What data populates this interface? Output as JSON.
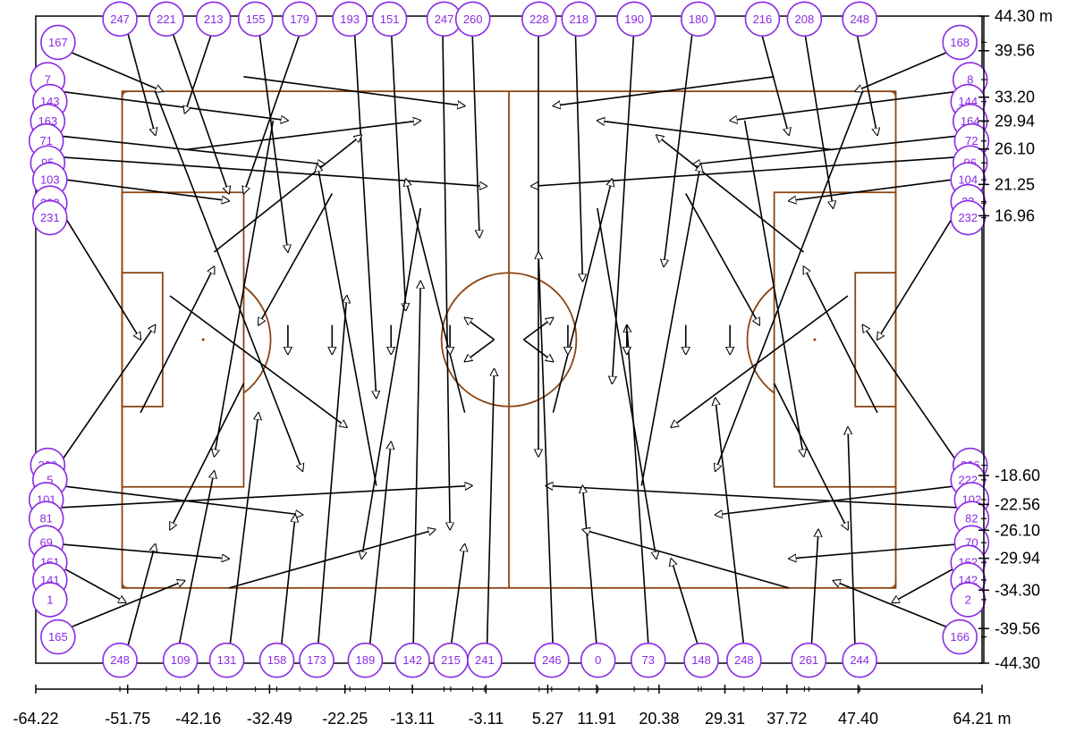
{
  "colors": {
    "pitch_lines": "#8b4513",
    "node_stroke": "#8b2be2",
    "node_text": "#8b2be2",
    "arrows": "#000000",
    "axes": "#000000"
  },
  "pitch": {
    "x_range": [
      -52.5,
      52.5
    ],
    "y_range": [
      -34.0,
      34.0
    ]
  },
  "world": {
    "x_range": [
      -64.22,
      64.21
    ],
    "y_range": [
      -44.3,
      44.3
    ],
    "unit": "m"
  },
  "x_axis": {
    "tick_labels": [
      {
        "value": -64.22,
        "label": "-64.22"
      },
      {
        "value": -51.75,
        "label": "-51.75"
      },
      {
        "value": -42.16,
        "label": "-42.16"
      },
      {
        "value": -32.49,
        "label": "-32.49"
      },
      {
        "value": -22.25,
        "label": "-22.25"
      },
      {
        "value": -13.11,
        "label": "-13.11"
      },
      {
        "value": -3.11,
        "label": "-3.11"
      },
      {
        "value": 5.27,
        "label": "5.27"
      },
      {
        "value": 11.91,
        "label": "11.91"
      },
      {
        "value": 20.38,
        "label": "20.38"
      },
      {
        "value": 29.31,
        "label": "29.31"
      },
      {
        "value": 37.72,
        "label": "37.72"
      },
      {
        "value": 47.4,
        "label": "47.40"
      },
      {
        "value": 64.21,
        "label": "64.21 m"
      }
    ]
  },
  "y_axis": {
    "tick_labels": [
      {
        "value": 44.3,
        "label": "44.30 m"
      },
      {
        "value": 39.56,
        "label": "39.56"
      },
      {
        "value": 33.2,
        "label": "33.20"
      },
      {
        "value": 29.94,
        "label": "29.94"
      },
      {
        "value": 26.1,
        "label": "26.10"
      },
      {
        "value": 21.25,
        "label": "21.25"
      },
      {
        "value": 16.96,
        "label": "16.96"
      },
      {
        "value": -18.6,
        "label": "-18.60"
      },
      {
        "value": -22.56,
        "label": "-22.56"
      },
      {
        "value": -26.1,
        "label": "-26.10"
      },
      {
        "value": -29.94,
        "label": "-29.94"
      },
      {
        "value": -34.3,
        "label": "-34.30"
      },
      {
        "value": -39.56,
        "label": "-39.56"
      },
      {
        "value": -44.3,
        "label": "-44.30"
      }
    ]
  },
  "nodes": [
    {
      "id": "167",
      "x": -61.2,
      "y": 40.7
    },
    {
      "id": "168",
      "x": 61.2,
      "y": 40.7
    },
    {
      "id": "165",
      "x": -61.2,
      "y": -40.7
    },
    {
      "id": "166",
      "x": 61.2,
      "y": -40.7
    },
    {
      "id": "7",
      "x": -62.6,
      "y": 35.6
    },
    {
      "id": "143",
      "x": -62.3,
      "y": 32.6
    },
    {
      "id": "163",
      "x": -62.6,
      "y": 29.9
    },
    {
      "id": "71",
      "x": -62.8,
      "y": 27.2
    },
    {
      "id": "95",
      "x": -62.6,
      "y": 24.2
    },
    {
      "id": "103",
      "x": -62.3,
      "y": 21.9
    },
    {
      "id": "223",
      "x": -62.3,
      "y": 18.7
    },
    {
      "id": "231",
      "x": -62.3,
      "y": 16.7
    },
    {
      "id": "229",
      "x": -62.6,
      "y": -17.2
    },
    {
      "id": "5",
      "x": -62.3,
      "y": -19.2
    },
    {
      "id": "101",
      "x": -62.8,
      "y": -21.9
    },
    {
      "id": "81",
      "x": -62.8,
      "y": -24.5
    },
    {
      "id": "69",
      "x": -62.8,
      "y": -27.8
    },
    {
      "id": "161",
      "x": -62.3,
      "y": -30.5
    },
    {
      "id": "141",
      "x": -62.3,
      "y": -32.9
    },
    {
      "id": "1",
      "x": -62.3,
      "y": -35.6
    },
    {
      "id": "8",
      "x": 62.6,
      "y": 35.6
    },
    {
      "id": "144",
      "x": 62.3,
      "y": 32.6
    },
    {
      "id": "164",
      "x": 62.6,
      "y": 29.9
    },
    {
      "id": "72",
      "x": 62.8,
      "y": 27.2
    },
    {
      "id": "96",
      "x": 62.6,
      "y": 24.2
    },
    {
      "id": "104",
      "x": 62.3,
      "y": 21.9
    },
    {
      "id": "22",
      "x": 62.3,
      "y": 18.9
    },
    {
      "id": "232",
      "x": 62.3,
      "y": 16.7
    },
    {
      "id": "226",
      "x": 62.6,
      "y": -17.2
    },
    {
      "id": "222",
      "x": 62.3,
      "y": -19.2
    },
    {
      "id": "102",
      "x": 62.8,
      "y": -21.9
    },
    {
      "id": "82",
      "x": 62.8,
      "y": -24.5
    },
    {
      "id": "70",
      "x": 62.8,
      "y": -27.8
    },
    {
      "id": "162",
      "x": 62.3,
      "y": -30.5
    },
    {
      "id": "142",
      "x": 62.3,
      "y": -32.9
    },
    {
      "id": "2",
      "x": 62.3,
      "y": -35.6
    },
    {
      "id": "247",
      "x": -52.8,
      "y": 43.9
    },
    {
      "id": "221",
      "x": -46.5,
      "y": 43.9
    },
    {
      "id": "213",
      "x": -40.1,
      "y": 43.9
    },
    {
      "id": "155",
      "x": -34.4,
      "y": 43.9
    },
    {
      "id": "179",
      "x": -28.4,
      "y": 43.9
    },
    {
      "id": "193",
      "x": -21.6,
      "y": 43.9
    },
    {
      "id": "151",
      "x": -16.2,
      "y": 43.9
    },
    {
      "id": "247b",
      "label": "247",
      "x": -8.8,
      "y": 43.9
    },
    {
      "id": "260",
      "x": -4.9,
      "y": 43.9
    },
    {
      "id": "228",
      "x": 4.1,
      "y": 43.9
    },
    {
      "id": "218",
      "x": 9.5,
      "y": 43.9
    },
    {
      "id": "190",
      "x": 17.0,
      "y": 43.9
    },
    {
      "id": "180",
      "x": 25.7,
      "y": 43.9
    },
    {
      "id": "216",
      "x": 34.4,
      "y": 43.9
    },
    {
      "id": "208",
      "x": 40.1,
      "y": 43.9
    },
    {
      "id": "248",
      "x": 47.6,
      "y": 43.9
    },
    {
      "id": "248b",
      "label": "248",
      "x": -52.8,
      "y": -43.9
    },
    {
      "id": "109",
      "x": -44.6,
      "y": -43.9
    },
    {
      "id": "131",
      "x": -38.3,
      "y": -43.9
    },
    {
      "id": "158",
      "x": -31.5,
      "y": -43.9
    },
    {
      "id": "173",
      "x": -26.1,
      "y": -43.9
    },
    {
      "id": "189",
      "x": -19.5,
      "y": -43.9
    },
    {
      "id": "142b",
      "label": "142",
      "x": -13.1,
      "y": -43.9
    },
    {
      "id": "215",
      "x": -7.9,
      "y": -43.9
    },
    {
      "id": "241",
      "x": -3.3,
      "y": -43.9
    },
    {
      "id": "246",
      "x": 5.8,
      "y": -43.9
    },
    {
      "id": "0",
      "x": 12.1,
      "y": -43.9
    },
    {
      "id": "73",
      "x": 18.9,
      "y": -43.9
    },
    {
      "id": "148",
      "x": 26.1,
      "y": -43.9
    },
    {
      "id": "248c",
      "label": "248",
      "x": 31.9,
      "y": -43.9
    },
    {
      "id": "261",
      "x": 40.7,
      "y": -43.9
    },
    {
      "id": "244",
      "x": 47.6,
      "y": -43.9
    }
  ],
  "arrows": [
    {
      "from": [
        -61,
        40
      ],
      "to": [
        -47,
        34
      ]
    },
    {
      "from": [
        -61,
        34
      ],
      "to": [
        -30,
        30
      ]
    },
    {
      "from": [
        -62,
        28
      ],
      "to": [
        -25,
        24
      ]
    },
    {
      "from": [
        -61,
        25
      ],
      "to": [
        -3,
        21
      ]
    },
    {
      "from": [
        -61,
        22
      ],
      "to": [
        -38,
        19
      ]
    },
    {
      "from": [
        -61,
        18
      ],
      "to": [
        -50,
        0
      ]
    },
    {
      "from": [
        -61,
        -17
      ],
      "to": [
        -48,
        2
      ]
    },
    {
      "from": [
        -61,
        -20
      ],
      "to": [
        -28,
        -24
      ]
    },
    {
      "from": [
        -61,
        -23
      ],
      "to": [
        -5,
        -20
      ]
    },
    {
      "from": [
        -61,
        -28
      ],
      "to": [
        -38,
        -30
      ]
    },
    {
      "from": [
        -61,
        -31
      ],
      "to": [
        -52,
        -36
      ]
    },
    {
      "from": [
        -61,
        -40
      ],
      "to": [
        -44,
        -33
      ]
    },
    {
      "from": [
        61,
        40
      ],
      "to": [
        47,
        34
      ]
    },
    {
      "from": [
        61,
        34
      ],
      "to": [
        30,
        30
      ]
    },
    {
      "from": [
        62,
        28
      ],
      "to": [
        25,
        24
      ]
    },
    {
      "from": [
        61,
        25
      ],
      "to": [
        3,
        21
      ]
    },
    {
      "from": [
        61,
        22
      ],
      "to": [
        38,
        19
      ]
    },
    {
      "from": [
        61,
        18
      ],
      "to": [
        50,
        0
      ]
    },
    {
      "from": [
        61,
        -17
      ],
      "to": [
        48,
        2
      ]
    },
    {
      "from": [
        61,
        -20
      ],
      "to": [
        28,
        -24
      ]
    },
    {
      "from": [
        61,
        -23
      ],
      "to": [
        5,
        -20
      ]
    },
    {
      "from": [
        61,
        -28
      ],
      "to": [
        38,
        -30
      ]
    },
    {
      "from": [
        61,
        -31
      ],
      "to": [
        52,
        -36
      ]
    },
    {
      "from": [
        61,
        -40
      ],
      "to": [
        44,
        -33
      ]
    },
    {
      "from": [
        -52,
        43
      ],
      "to": [
        -48,
        28
      ]
    },
    {
      "from": [
        -46,
        43
      ],
      "to": [
        -38,
        20
      ]
    },
    {
      "from": [
        -40,
        43
      ],
      "to": [
        -44,
        31
      ]
    },
    {
      "from": [
        -34,
        43
      ],
      "to": [
        -30,
        12
      ]
    },
    {
      "from": [
        -28,
        43
      ],
      "to": [
        -36,
        20
      ]
    },
    {
      "from": [
        -21,
        43
      ],
      "to": [
        -18,
        -8
      ]
    },
    {
      "from": [
        -16,
        43
      ],
      "to": [
        -14,
        4
      ]
    },
    {
      "from": [
        -9,
        43
      ],
      "to": [
        -8,
        -26
      ]
    },
    {
      "from": [
        -5,
        43
      ],
      "to": [
        -4,
        14
      ]
    },
    {
      "from": [
        4,
        43
      ],
      "to": [
        4,
        -16
      ]
    },
    {
      "from": [
        9,
        43
      ],
      "to": [
        10,
        8
      ]
    },
    {
      "from": [
        17,
        43
      ],
      "to": [
        14,
        -6
      ]
    },
    {
      "from": [
        25,
        43
      ],
      "to": [
        21,
        10
      ]
    },
    {
      "from": [
        34,
        43
      ],
      "to": [
        38,
        28
      ]
    },
    {
      "from": [
        40,
        43
      ],
      "to": [
        44,
        18
      ]
    },
    {
      "from": [
        47,
        43
      ],
      "to": [
        50,
        28
      ]
    },
    {
      "from": [
        -52,
        -43
      ],
      "to": [
        -48,
        -28
      ]
    },
    {
      "from": [
        -45,
        -43
      ],
      "to": [
        -40,
        -18
      ]
    },
    {
      "from": [
        -38,
        -43
      ],
      "to": [
        -34,
        -10
      ]
    },
    {
      "from": [
        -31,
        -43
      ],
      "to": [
        -29,
        -24
      ]
    },
    {
      "from": [
        -26,
        -43
      ],
      "to": [
        -22,
        6
      ]
    },
    {
      "from": [
        -19,
        -43
      ],
      "to": [
        -16,
        -14
      ]
    },
    {
      "from": [
        -13,
        -43
      ],
      "to": [
        -12,
        8
      ]
    },
    {
      "from": [
        -8,
        -43
      ],
      "to": [
        -6,
        -28
      ]
    },
    {
      "from": [
        -3,
        -43
      ],
      "to": [
        -2,
        -4
      ]
    },
    {
      "from": [
        6,
        -43
      ],
      "to": [
        4,
        12
      ]
    },
    {
      "from": [
        12,
        -43
      ],
      "to": [
        10,
        -20
      ]
    },
    {
      "from": [
        19,
        -43
      ],
      "to": [
        16,
        2
      ]
    },
    {
      "from": [
        26,
        -43
      ],
      "to": [
        22,
        -30
      ]
    },
    {
      "from": [
        32,
        -43
      ],
      "to": [
        28,
        -8
      ]
    },
    {
      "from": [
        41,
        -43
      ],
      "to": [
        42,
        -26
      ]
    },
    {
      "from": [
        47,
        -43
      ],
      "to": [
        46,
        -12
      ]
    },
    {
      "from": [
        -48,
        34
      ],
      "to": [
        -28,
        -18
      ]
    },
    {
      "from": [
        -44,
        26
      ],
      "to": [
        -12,
        30
      ]
    },
    {
      "from": [
        -40,
        12
      ],
      "to": [
        -20,
        28
      ]
    },
    {
      "from": [
        -36,
        -6
      ],
      "to": [
        -46,
        -26
      ]
    },
    {
      "from": [
        -32,
        30
      ],
      "to": [
        -40,
        -16
      ]
    },
    {
      "from": [
        -24,
        20
      ],
      "to": [
        -34,
        2
      ]
    },
    {
      "from": [
        -18,
        -20
      ],
      "to": [
        -26,
        24
      ]
    },
    {
      "from": [
        -12,
        18
      ],
      "to": [
        -20,
        -30
      ]
    },
    {
      "from": [
        -6,
        -10
      ],
      "to": [
        -14,
        22
      ]
    },
    {
      "from": [
        -2,
        0
      ],
      "to": [
        -6,
        3
      ]
    },
    {
      "from": [
        2,
        0
      ],
      "to": [
        6,
        3
      ]
    },
    {
      "from": [
        -2,
        0
      ],
      "to": [
        -6,
        -3
      ]
    },
    {
      "from": [
        2,
        0
      ],
      "to": [
        6,
        -3
      ]
    },
    {
      "from": [
        48,
        34
      ],
      "to": [
        28,
        -18
      ]
    },
    {
      "from": [
        44,
        26
      ],
      "to": [
        12,
        30
      ]
    },
    {
      "from": [
        40,
        12
      ],
      "to": [
        20,
        28
      ]
    },
    {
      "from": [
        36,
        -6
      ],
      "to": [
        46,
        -26
      ]
    },
    {
      "from": [
        32,
        30
      ],
      "to": [
        40,
        -16
      ]
    },
    {
      "from": [
        24,
        20
      ],
      "to": [
        34,
        2
      ]
    },
    {
      "from": [
        18,
        -20
      ],
      "to": [
        26,
        24
      ]
    },
    {
      "from": [
        12,
        18
      ],
      "to": [
        20,
        -30
      ]
    },
    {
      "from": [
        6,
        -10
      ],
      "to": [
        14,
        22
      ]
    },
    {
      "from": [
        -30,
        2
      ],
      "to": [
        -30,
        -2
      ]
    },
    {
      "from": [
        -24,
        2
      ],
      "to": [
        -24,
        -2
      ]
    },
    {
      "from": [
        -16,
        2
      ],
      "to": [
        -16,
        -2
      ]
    },
    {
      "from": [
        -8,
        2
      ],
      "to": [
        -8,
        -2
      ]
    },
    {
      "from": [
        8,
        2
      ],
      "to": [
        8,
        -2
      ]
    },
    {
      "from": [
        16,
        2
      ],
      "to": [
        16,
        -2
      ]
    },
    {
      "from": [
        24,
        2
      ],
      "to": [
        24,
        -2
      ]
    },
    {
      "from": [
        30,
        2
      ],
      "to": [
        30,
        -2
      ]
    },
    {
      "from": [
        -50,
        -10
      ],
      "to": [
        -40,
        10
      ]
    },
    {
      "from": [
        50,
        -10
      ],
      "to": [
        40,
        10
      ]
    },
    {
      "from": [
        -46,
        6
      ],
      "to": [
        -22,
        -12
      ]
    },
    {
      "from": [
        46,
        6
      ],
      "to": [
        22,
        -12
      ]
    },
    {
      "from": [
        -38,
        -34
      ],
      "to": [
        -10,
        -26
      ]
    },
    {
      "from": [
        38,
        -34
      ],
      "to": [
        10,
        -26
      ]
    },
    {
      "from": [
        -36,
        36
      ],
      "to": [
        -6,
        32
      ]
    },
    {
      "from": [
        36,
        36
      ],
      "to": [
        6,
        32
      ]
    }
  ]
}
